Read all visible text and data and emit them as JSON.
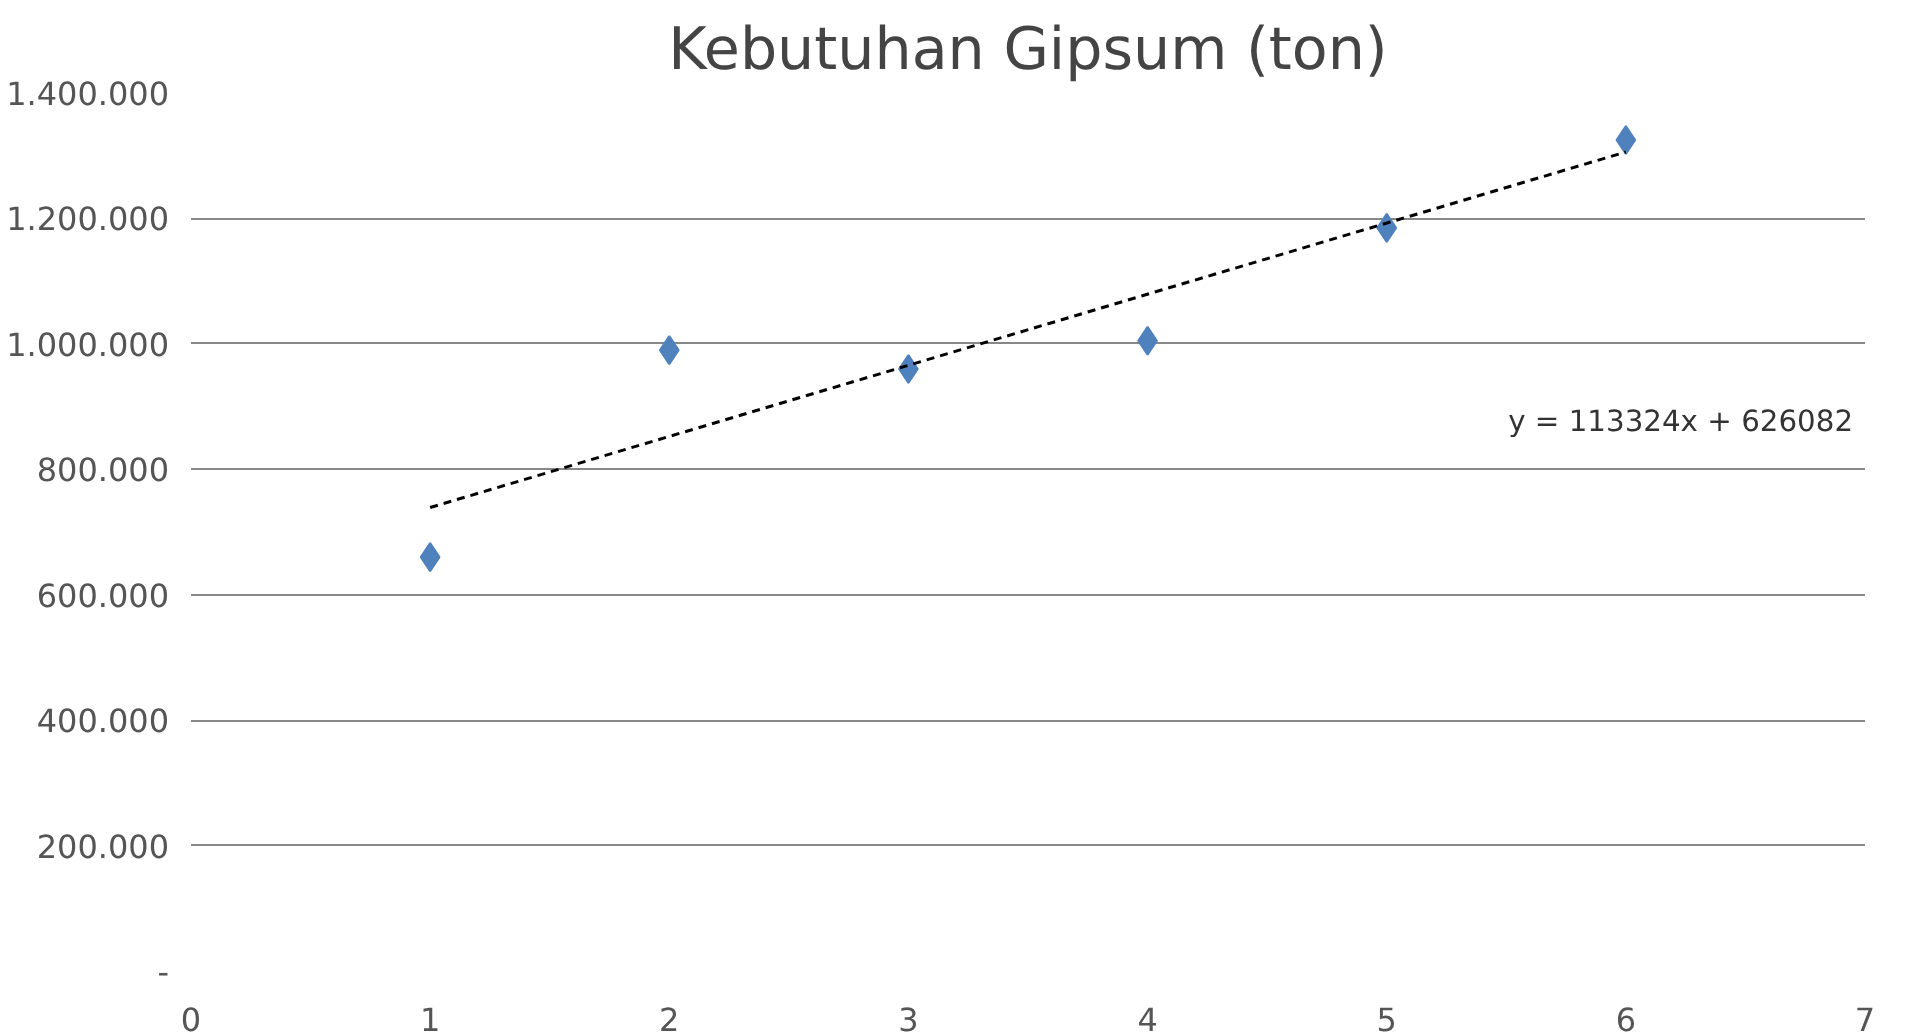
{
  "chart_data": {
    "type": "scatter",
    "title": "Kebutuhan Gipsum (ton)",
    "xlim": [
      0,
      7
    ],
    "xticks": [
      0,
      1,
      2,
      3,
      4,
      5,
      6,
      7
    ],
    "ylim": [
      0,
      1400000
    ],
    "yticks": [
      {
        "value": 0,
        "label": "-"
      },
      {
        "value": 200000,
        "label": "200.000"
      },
      {
        "value": 400000,
        "label": "400.000"
      },
      {
        "value": 600000,
        "label": "600.000"
      },
      {
        "value": 800000,
        "label": "800.000"
      },
      {
        "value": 1000000,
        "label": "1.000.000"
      },
      {
        "value": 1200000,
        "label": "1.200.000"
      },
      {
        "value": 1400000,
        "label": "1.400.000"
      }
    ],
    "grid": "y",
    "marker": "diamond",
    "series": [
      {
        "color": "#4f81bd",
        "x": [
          1,
          2,
          3,
          4,
          5,
          6
        ],
        "values": [
          660000,
          990000,
          960000,
          1005000,
          1185000,
          1325000
        ]
      },
      {
        "type": "line",
        "color": "#000000",
        "line_style": "dashed",
        "marker": "none",
        "x": [
          1,
          6
        ],
        "values": [
          739000,
          1306000
        ]
      }
    ],
    "annotations": [
      "y = 113324x + 626082"
    ]
  }
}
